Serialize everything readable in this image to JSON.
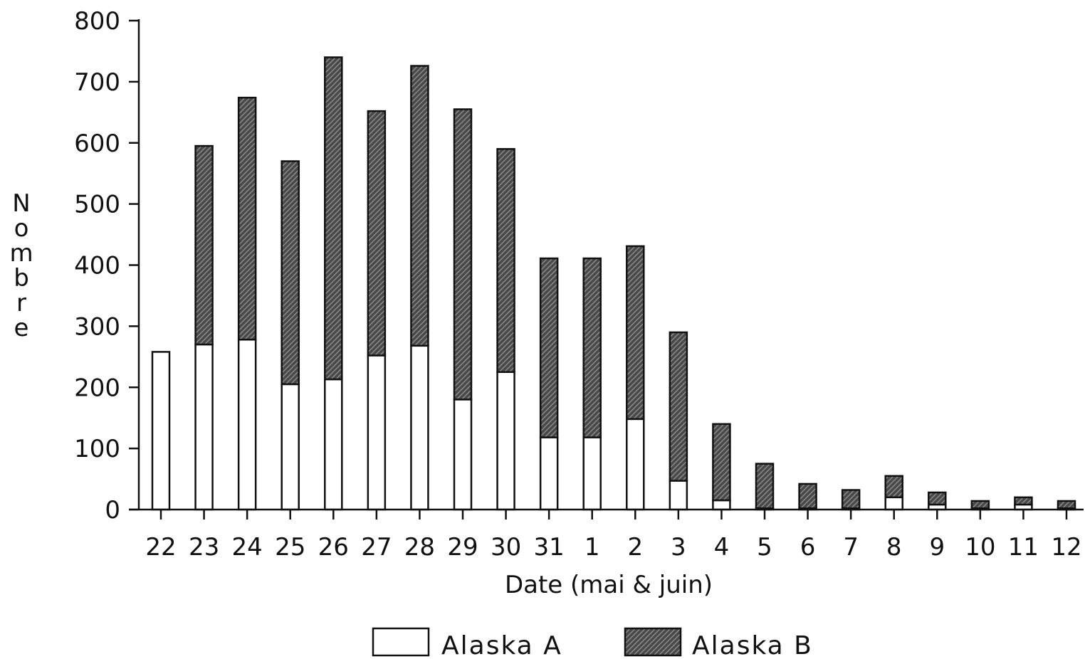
{
  "chart_data": {
    "type": "bar",
    "stacked": true,
    "categories": [
      "22",
      "23",
      "24",
      "25",
      "26",
      "27",
      "28",
      "29",
      "30",
      "31",
      "1",
      "2",
      "3",
      "4",
      "5",
      "6",
      "7",
      "8",
      "9",
      "10",
      "11",
      "12"
    ],
    "series": [
      {
        "name": "Alaska A",
        "values": [
          258,
          270,
          278,
          205,
          213,
          252,
          268,
          180,
          225,
          118,
          118,
          148,
          47,
          15,
          2,
          2,
          2,
          20,
          8,
          2,
          8,
          2
        ]
      },
      {
        "name": "Alaska B",
        "values": [
          0,
          325,
          396,
          365,
          527,
          400,
          458,
          475,
          365,
          293,
          293,
          283,
          243,
          125,
          73,
          40,
          30,
          35,
          20,
          12,
          12,
          12
        ]
      }
    ],
    "ylabel": "Nombre",
    "xlabel": "Date (mai & juin)",
    "ylim": [
      0,
      800
    ],
    "yticks": [
      0,
      100,
      200,
      300,
      400,
      500,
      600,
      700,
      800
    ],
    "grid": false,
    "legend_position": "bottom-center",
    "colors": {
      "Alaska A": "#ffffff",
      "Alaska B": "#3a3a3a"
    }
  }
}
